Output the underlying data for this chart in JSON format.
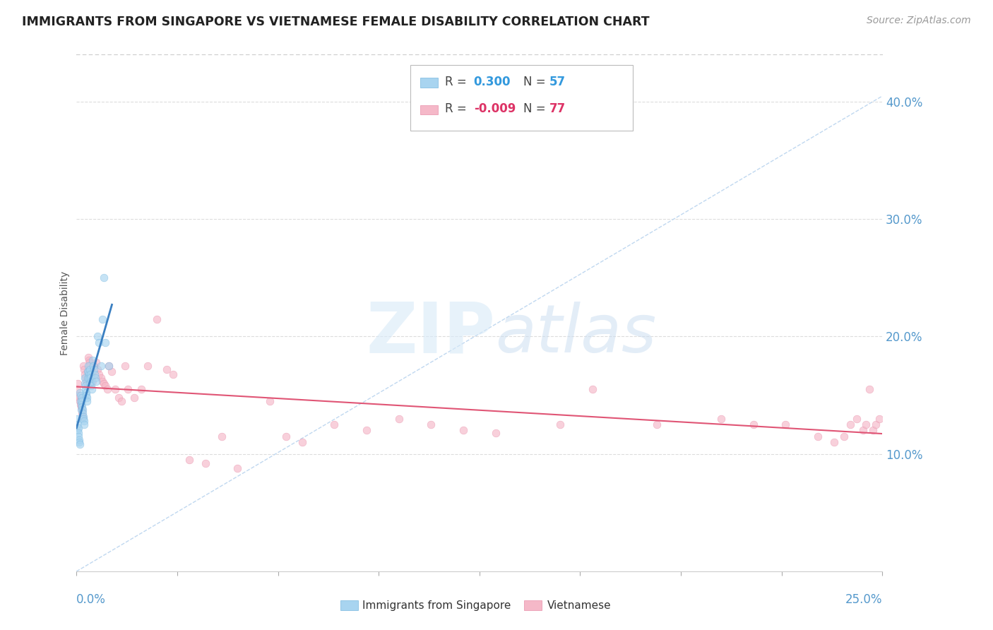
{
  "title": "IMMIGRANTS FROM SINGAPORE VS VIETNAMESE FEMALE DISABILITY CORRELATION CHART",
  "source": "Source: ZipAtlas.com",
  "ylabel": "Female Disability",
  "ylim": [
    0.0,
    0.44
  ],
  "xlim": [
    0.0,
    0.25
  ],
  "yticks": [
    0.1,
    0.2,
    0.3,
    0.4
  ],
  "ytick_labels": [
    "10.0%",
    "20.0%",
    "30.0%",
    "40.0%"
  ],
  "color_blue": "#A8D4F0",
  "color_blue_line": "#3A7FC1",
  "color_pink": "#F5B8C8",
  "color_pink_line": "#E05575",
  "color_diag": "#C0D8F0",
  "background": "#FFFFFF",
  "singapore_x": [
    0.0002,
    0.0003,
    0.0004,
    0.0005,
    0.0006,
    0.0007,
    0.0008,
    0.0009,
    0.001,
    0.0011,
    0.0012,
    0.0013,
    0.0014,
    0.0015,
    0.0016,
    0.0017,
    0.0018,
    0.0019,
    0.002,
    0.0021,
    0.0022,
    0.0023,
    0.0024,
    0.0025,
    0.0026,
    0.0027,
    0.0028,
    0.0029,
    0.003,
    0.0032,
    0.0033,
    0.0034,
    0.0035,
    0.0036,
    0.0037,
    0.0038,
    0.0039,
    0.004,
    0.0042,
    0.0043,
    0.0044,
    0.0045,
    0.0046,
    0.0048,
    0.005,
    0.0052,
    0.0054,
    0.0056,
    0.0058,
    0.006,
    0.0065,
    0.007,
    0.0075,
    0.008,
    0.0085,
    0.009,
    0.01
  ],
  "singapore_y": [
    0.13,
    0.125,
    0.12,
    0.122,
    0.118,
    0.115,
    0.112,
    0.11,
    0.108,
    0.152,
    0.15,
    0.145,
    0.142,
    0.138,
    0.148,
    0.145,
    0.14,
    0.138,
    0.135,
    0.132,
    0.13,
    0.128,
    0.125,
    0.165,
    0.16,
    0.158,
    0.155,
    0.152,
    0.15,
    0.148,
    0.145,
    0.17,
    0.165,
    0.175,
    0.17,
    0.168,
    0.165,
    0.16,
    0.172,
    0.168,
    0.165,
    0.162,
    0.158,
    0.155,
    0.18,
    0.175,
    0.172,
    0.168,
    0.165,
    0.162,
    0.2,
    0.195,
    0.175,
    0.215,
    0.25,
    0.195,
    0.175
  ],
  "vietnamese_x": [
    0.0002,
    0.0004,
    0.0006,
    0.0008,
    0.001,
    0.0012,
    0.0014,
    0.0016,
    0.0018,
    0.002,
    0.0022,
    0.0024,
    0.0026,
    0.0028,
    0.003,
    0.0032,
    0.0034,
    0.0036,
    0.0038,
    0.004,
    0.0042,
    0.0044,
    0.0046,
    0.0048,
    0.005,
    0.0055,
    0.006,
    0.0065,
    0.007,
    0.0075,
    0.008,
    0.0085,
    0.009,
    0.0095,
    0.01,
    0.011,
    0.012,
    0.013,
    0.014,
    0.015,
    0.016,
    0.018,
    0.02,
    0.022,
    0.025,
    0.028,
    0.03,
    0.035,
    0.04,
    0.045,
    0.05,
    0.06,
    0.065,
    0.07,
    0.08,
    0.09,
    0.1,
    0.11,
    0.12,
    0.13,
    0.15,
    0.16,
    0.18,
    0.2,
    0.21,
    0.22,
    0.23,
    0.235,
    0.238,
    0.24,
    0.242,
    0.244,
    0.245,
    0.246,
    0.247,
    0.248,
    0.249
  ],
  "vietnamese_y": [
    0.155,
    0.16,
    0.15,
    0.148,
    0.145,
    0.142,
    0.14,
    0.138,
    0.135,
    0.132,
    0.175,
    0.172,
    0.168,
    0.165,
    0.162,
    0.16,
    0.158,
    0.182,
    0.18,
    0.178,
    0.175,
    0.172,
    0.168,
    0.165,
    0.162,
    0.175,
    0.178,
    0.172,
    0.168,
    0.165,
    0.162,
    0.16,
    0.158,
    0.155,
    0.175,
    0.17,
    0.155,
    0.148,
    0.145,
    0.175,
    0.155,
    0.148,
    0.155,
    0.175,
    0.215,
    0.172,
    0.168,
    0.095,
    0.092,
    0.115,
    0.088,
    0.145,
    0.115,
    0.11,
    0.125,
    0.12,
    0.13,
    0.125,
    0.12,
    0.118,
    0.125,
    0.155,
    0.125,
    0.13,
    0.125,
    0.125,
    0.115,
    0.11,
    0.115,
    0.125,
    0.13,
    0.12,
    0.125,
    0.155,
    0.12,
    0.125,
    0.13
  ]
}
